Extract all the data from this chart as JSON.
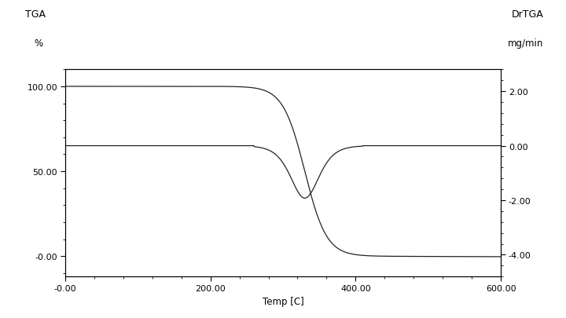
{
  "title_left": "TGA",
  "ylabel_left": "%",
  "title_right": "DrTGA",
  "ylabel_right": "mg/min",
  "xlabel": "Temp [C]",
  "xlim": [
    -0.0,
    600.0
  ],
  "tga_yticks": [
    "-0.00",
    "50.00",
    "100.00"
  ],
  "tga_ytick_vals": [
    0.0,
    50.0,
    100.0
  ],
  "dtga_yticks": [
    "-4.00",
    "-2.00",
    "0.00",
    "2.00"
  ],
  "dtga_ytick_vals": [
    -4.0,
    -2.0,
    0.0,
    2.0
  ],
  "xticks": [
    "-0.00",
    "200.00",
    "400.00",
    "600.00"
  ],
  "xtick_vals": [
    0.0,
    200.0,
    400.0,
    600.0
  ],
  "background_color": "#ffffff",
  "line_color": "#222222",
  "font_size_tick": 8,
  "font_size_label": 8.5,
  "font_size_title": 9
}
